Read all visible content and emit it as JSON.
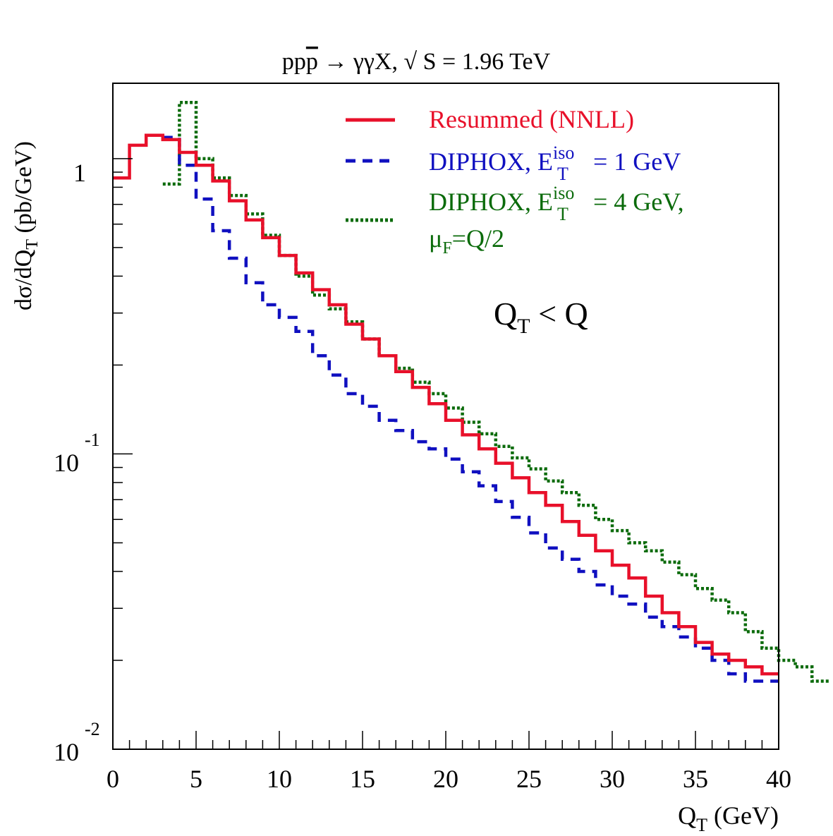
{
  "chart_data": {
    "type": "line",
    "title": "pp̄ → γγX, √ S = 1.96 TeV",
    "title_parts": {
      "pp": "pp",
      "pbar": "p",
      "arrow": "→",
      "rest": "γγX, √ S = 1.96 TeV"
    },
    "xlabel": {
      "main": "Q",
      "sub": "T",
      "tail": " (GeV)"
    },
    "ylabel": {
      "a": "dσ/dQ",
      "sub": "T",
      "b": " (pb/GeV)"
    },
    "annotation": {
      "main": "Q",
      "sub": "T",
      "tail": " < Q"
    },
    "xlim": [
      0,
      40
    ],
    "ylim": [
      0.01,
      1.8
    ],
    "y_scale": "log",
    "x_ticks": [
      "0",
      "5",
      "10",
      "15",
      "20",
      "25",
      "30",
      "35",
      "40"
    ],
    "y_ticks": [
      {
        "value": 1,
        "base": "1",
        "exp": ""
      },
      {
        "value": 0.1,
        "base": "10",
        "exp": "-1"
      },
      {
        "value": 0.01,
        "base": "10",
        "exp": "-2"
      }
    ],
    "grid": false,
    "legend_position": "top-right",
    "series": [
      {
        "key": "resummed",
        "legend": {
          "text": "Resummed (NNLL)"
        },
        "color": "#e8102a",
        "style": "solid",
        "bin_width": 1,
        "x_start": 0,
        "values": [
          0.86,
          1.11,
          1.2,
          1.16,
          1.05,
          0.95,
          0.84,
          0.72,
          0.62,
          0.54,
          0.47,
          0.41,
          0.36,
          0.32,
          0.275,
          0.245,
          0.215,
          0.19,
          0.168,
          0.148,
          0.13,
          0.116,
          0.104,
          0.093,
          0.083,
          0.074,
          0.067,
          0.059,
          0.053,
          0.047,
          0.042,
          0.038,
          0.033,
          0.029,
          0.026,
          0.023,
          0.021,
          0.02,
          0.019,
          0.018
        ]
      },
      {
        "key": "diphox1",
        "legend": {
          "pre": "DIPHOX, E",
          "sup": "iso",
          "sub": "T",
          "post": " = 1 GeV"
        },
        "color": "#1010c0",
        "style": "dashed",
        "bin_width": 1,
        "x_start": 3,
        "values": [
          1.18,
          0.95,
          0.73,
          0.57,
          0.46,
          0.38,
          0.32,
          0.29,
          0.26,
          0.215,
          0.185,
          0.16,
          0.145,
          0.13,
          0.12,
          0.11,
          0.104,
          0.096,
          0.087,
          0.078,
          0.069,
          0.061,
          0.054,
          0.048,
          0.044,
          0.04,
          0.036,
          0.033,
          0.031,
          0.028,
          0.026,
          0.024,
          0.022,
          0.02,
          0.018,
          0.017,
          0.017
        ]
      },
      {
        "key": "diphox4",
        "legend": {
          "pre": "DIPHOX, E",
          "sup": "iso",
          "sub": "T",
          "post": " = 4 GeV,",
          "line2_pre": "μ",
          "line2_sub": "F",
          "line2_post": "=Q/2"
        },
        "color": "#0b6b0b",
        "style": "dotted",
        "bin_width": 1,
        "x_start": 3,
        "values": [
          0.82,
          1.55,
          1.0,
          0.86,
          0.75,
          0.65,
          0.55,
          0.47,
          0.4,
          0.345,
          0.31,
          0.28,
          0.245,
          0.215,
          0.195,
          0.175,
          0.16,
          0.143,
          0.128,
          0.117,
          0.106,
          0.097,
          0.089,
          0.081,
          0.074,
          0.067,
          0.06,
          0.055,
          0.05,
          0.047,
          0.043,
          0.039,
          0.035,
          0.032,
          0.029,
          0.025,
          0.022,
          0.02,
          0.019,
          0.017
        ]
      }
    ]
  }
}
